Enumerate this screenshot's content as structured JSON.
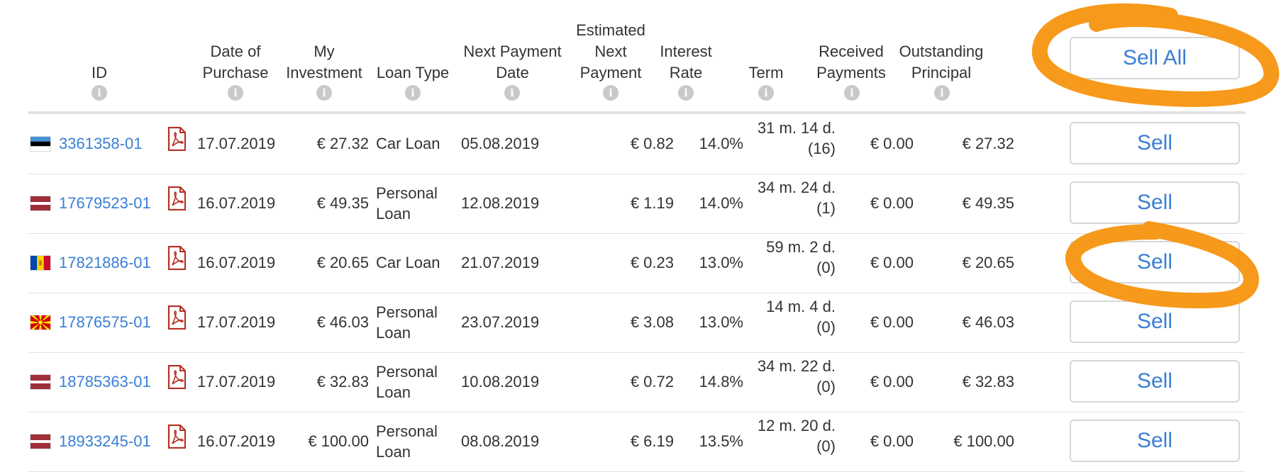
{
  "columns": {
    "id": "ID",
    "date_purchase": [
      "Date of",
      "Purchase"
    ],
    "investment": [
      "My",
      "Investment"
    ],
    "loan_type": "Loan Type",
    "next_payment_date": [
      "Next Payment",
      "Date"
    ],
    "est_next_payment": [
      "Estimated",
      "Next",
      "Payment"
    ],
    "interest_rate": [
      "Interest",
      "Rate"
    ],
    "term": "Term",
    "received_payments": [
      "Received",
      "Payments"
    ],
    "outstanding_principal": [
      "Outstanding",
      "Principal"
    ]
  },
  "info_icon": "i",
  "sell_all_label": "Sell All",
  "sell_label": "Sell",
  "highlight_color": "#f7930f",
  "rows": [
    {
      "flag": "estonia",
      "id": "3361358-01",
      "date": "17.07.2019",
      "investment": "€ 27.32",
      "loan_type": [
        "Car Loan"
      ],
      "next_date": "05.08.2019",
      "est_payment": "€ 0.82",
      "rate": "14.0%",
      "term": [
        "31 m. 14 d.",
        "(16)"
      ],
      "received": "€ 0.00",
      "outstanding": "€ 27.32"
    },
    {
      "flag": "latvia",
      "id": "17679523-01",
      "date": "16.07.2019",
      "investment": "€ 49.35",
      "loan_type": [
        "Personal",
        "Loan"
      ],
      "next_date": "12.08.2019",
      "est_payment": "€ 1.19",
      "rate": "14.0%",
      "term": [
        "34 m. 24 d.",
        "(1)"
      ],
      "received": "€ 0.00",
      "outstanding": "€ 49.35"
    },
    {
      "flag": "moldova",
      "id": "17821886-01",
      "date": "16.07.2019",
      "investment": "€ 20.65",
      "loan_type": [
        "Car Loan"
      ],
      "next_date": "21.07.2019",
      "est_payment": "€ 0.23",
      "rate": "13.0%",
      "term": [
        "59 m. 2 d.",
        "(0)"
      ],
      "received": "€ 0.00",
      "outstanding": "€ 20.65"
    },
    {
      "flag": "north-macedonia",
      "id": "17876575-01",
      "date": "17.07.2019",
      "investment": "€ 46.03",
      "loan_type": [
        "Personal",
        "Loan"
      ],
      "next_date": "23.07.2019",
      "est_payment": "€ 3.08",
      "rate": "13.0%",
      "term": [
        "14 m. 4 d.",
        "(0)"
      ],
      "received": "€ 0.00",
      "outstanding": "€ 46.03"
    },
    {
      "flag": "latvia",
      "id": "18785363-01",
      "date": "17.07.2019",
      "investment": "€ 32.83",
      "loan_type": [
        "Personal",
        "Loan"
      ],
      "next_date": "10.08.2019",
      "est_payment": "€ 0.72",
      "rate": "14.8%",
      "term": [
        "34 m. 22 d.",
        "(0)"
      ],
      "received": "€ 0.00",
      "outstanding": "€ 32.83"
    },
    {
      "flag": "latvia",
      "id": "18933245-01",
      "date": "16.07.2019",
      "investment": "€ 100.00",
      "loan_type": [
        "Personal",
        "Loan"
      ],
      "next_date": "08.08.2019",
      "est_payment": "€ 6.19",
      "rate": "13.5%",
      "term": [
        "12 m. 20 d.",
        "(0)"
      ],
      "received": "€ 0.00",
      "outstanding": "€ 100.00"
    }
  ]
}
